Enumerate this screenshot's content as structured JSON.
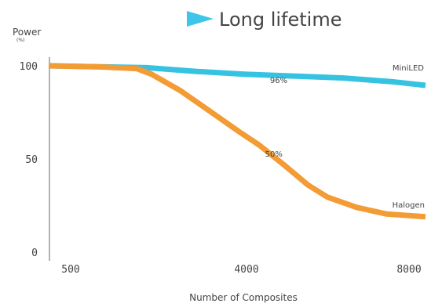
{
  "chart_data": {
    "type": "line",
    "title": "Long lifetime",
    "title_marker_color": "#3ec6e8",
    "ylabel": "Power",
    "yunit": "(%)",
    "xlabel": "Number of Composites",
    "yticks": [
      0,
      50,
      100
    ],
    "ytick_labels": [
      "0",
      "50",
      "100"
    ],
    "xtick_labels": [
      "500",
      "4000",
      "8000"
    ],
    "ylim": [
      0,
      100
    ],
    "series": [
      {
        "name": "MiniLED",
        "color": "#36c3e2",
        "values": [
          [
            500,
            100
          ],
          [
            1500,
            99.5
          ],
          [
            2500,
            99
          ],
          [
            3500,
            97
          ],
          [
            4500,
            95.5
          ],
          [
            5500,
            94.5
          ],
          [
            6500,
            93.5
          ],
          [
            7500,
            91.5
          ],
          [
            8200,
            89.5
          ]
        ]
      },
      {
        "name": "Halogen",
        "color": "#f39b34",
        "values": [
          [
            500,
            100
          ],
          [
            1500,
            99.5
          ],
          [
            2300,
            98.5
          ],
          [
            2600,
            95.5
          ],
          [
            3200,
            86.5
          ],
          [
            3800,
            75.5
          ],
          [
            4400,
            64.5
          ],
          [
            4800,
            57.5
          ],
          [
            5300,
            47
          ],
          [
            5800,
            36
          ],
          [
            6200,
            29.5
          ],
          [
            6800,
            24
          ],
          [
            7400,
            20.5
          ],
          [
            8200,
            19
          ]
        ]
      }
    ],
    "annotations": [
      {
        "text": "96%",
        "x": 5200,
        "y": 92.5
      },
      {
        "text": "50%",
        "x": 5100,
        "y": 53
      }
    ]
  }
}
